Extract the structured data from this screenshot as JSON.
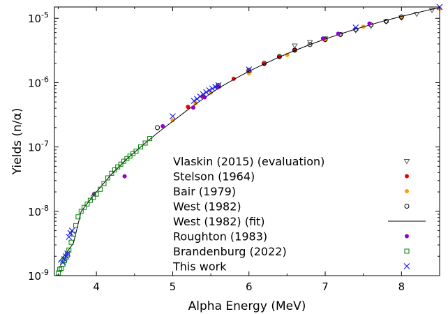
{
  "chart_data": {
    "type": "scatter",
    "xlabel": "Alpha Energy (MeV)",
    "ylabel": "Yields (n/α)",
    "xlim": [
      3.45,
      8.5
    ],
    "ylim": [
      1e-09,
      1.5e-05
    ],
    "yscale": "log",
    "x_ticks": [
      4,
      5,
      6,
      7,
      8
    ],
    "y_ticks": [
      {
        "value": 1e-09,
        "mantissa": "10",
        "exp": "-9"
      },
      {
        "value": 1e-08,
        "mantissa": "10",
        "exp": "-8"
      },
      {
        "value": 1e-07,
        "mantissa": "10",
        "exp": "-7"
      },
      {
        "value": 1e-06,
        "mantissa": "10",
        "exp": "-6"
      },
      {
        "value": 1e-05,
        "mantissa": "10",
        "exp": "-5"
      }
    ],
    "grid": false,
    "legend_position": "lower-right",
    "series": [
      {
        "name": "Vlaskin (2015) (evaluation)",
        "marker": "triangle-down-open",
        "color": "#555555",
        "points": [
          [
            6.6,
            3.75e-06
          ],
          [
            6.8,
            4.25e-06
          ],
          [
            7.0,
            4.85e-06
          ],
          [
            7.2,
            5.6e-06
          ],
          [
            7.4,
            6.5e-06
          ],
          [
            7.6,
            7.6e-06
          ],
          [
            7.8,
            8.9e-06
          ],
          [
            8.0,
            1.02e-05
          ],
          [
            8.2,
            1.17e-05
          ],
          [
            8.4,
            1.34e-05
          ]
        ]
      },
      {
        "name": "Stelson (1964)",
        "marker": "circle-filled",
        "color": "#ee0000",
        "points": [
          [
            5.2,
            4.2e-07
          ],
          [
            5.4,
            6.2e-07
          ],
          [
            5.6,
            8.6e-07
          ],
          [
            5.8,
            1.15e-06
          ],
          [
            6.0,
            1.5e-06
          ],
          [
            6.2,
            1.95e-06
          ],
          [
            6.4,
            2.5e-06
          ],
          [
            6.6,
            3.2e-06
          ],
          [
            7.0,
            4.7e-06
          ],
          [
            8.0,
            1.02e-05
          ]
        ]
      },
      {
        "name": "Bair (1979)",
        "marker": "circle-filled",
        "color": "#ffa000",
        "points": [
          [
            5.0,
            2.6e-07
          ],
          [
            5.3,
            4.8e-07
          ],
          [
            5.5,
            7e-07
          ],
          [
            6.0,
            1.4e-06
          ],
          [
            6.5,
            2.7e-06
          ],
          [
            7.0,
            4.6e-06
          ],
          [
            7.5,
            7.4e-06
          ],
          [
            8.0,
            1.06e-05
          ],
          [
            8.5,
            1.42e-05
          ]
        ]
      },
      {
        "name": "West (1982)",
        "marker": "circle-open",
        "color": "#000000",
        "points": [
          [
            4.8,
            2e-07
          ],
          [
            5.6,
            9e-07
          ],
          [
            6.0,
            1.55e-06
          ],
          [
            6.2,
            2e-06
          ],
          [
            6.4,
            2.55e-06
          ],
          [
            6.6,
            3.2e-06
          ],
          [
            6.8,
            3.9e-06
          ],
          [
            7.0,
            4.7e-06
          ],
          [
            7.2,
            5.6e-06
          ],
          [
            7.4,
            6.7e-06
          ],
          [
            7.6,
            7.9e-06
          ],
          [
            7.8,
            9e-06
          ],
          [
            8.0,
            1.05e-05
          ]
        ]
      },
      {
        "name": "West (1982) (fit)",
        "marker": "line",
        "color": "#000000",
        "points": [
          [
            3.5,
            1.6e-09
          ],
          [
            3.6,
            2.2e-09
          ],
          [
            3.7,
            3.2e-09
          ],
          [
            3.8,
            1e-08
          ],
          [
            4.0,
            2e-08
          ],
          [
            4.2,
            3.8e-08
          ],
          [
            4.4,
            6.5e-08
          ],
          [
            4.6,
            1.05e-07
          ],
          [
            4.8,
            1.65e-07
          ],
          [
            5.0,
            2.5e-07
          ],
          [
            5.2,
            3.8e-07
          ],
          [
            5.4,
            5.6e-07
          ],
          [
            5.6,
            8.2e-07
          ],
          [
            5.8,
            1.12e-06
          ],
          [
            6.0,
            1.5e-06
          ],
          [
            6.2,
            1.95e-06
          ],
          [
            6.4,
            2.5e-06
          ],
          [
            6.6,
            3.15e-06
          ],
          [
            6.8,
            3.9e-06
          ],
          [
            7.0,
            4.75e-06
          ],
          [
            7.2,
            5.7e-06
          ],
          [
            7.4,
            6.8e-06
          ],
          [
            7.6,
            8e-06
          ],
          [
            7.8,
            9.3e-06
          ],
          [
            8.0,
            1.07e-05
          ],
          [
            8.2,
            1.22e-05
          ],
          [
            8.4,
            1.38e-05
          ],
          [
            8.5,
            1.46e-05
          ]
        ]
      },
      {
        "name": "Roughton (1983)",
        "marker": "circle-filled",
        "color": "#9400d3",
        "points": [
          [
            3.97,
            1.85e-08
          ],
          [
            4.37,
            3.5e-08
          ],
          [
            4.87,
            2.1e-07
          ],
          [
            5.27,
            4.1e-07
          ],
          [
            5.42,
            5.9e-07
          ],
          [
            5.58,
            8.6e-07
          ],
          [
            6.97,
            4.85e-06
          ],
          [
            7.17,
            5.75e-06
          ],
          [
            7.58,
            8.3e-06
          ]
        ]
      },
      {
        "name": "Brandenburg (2022)",
        "marker": "square-open",
        "color": "#008000",
        "points": [
          [
            3.5,
            1.1e-09
          ],
          [
            3.52,
            1.25e-09
          ],
          [
            3.54,
            1.3e-09
          ],
          [
            3.56,
            1.5e-09
          ],
          [
            3.58,
            1.7e-09
          ],
          [
            3.6,
            1.9e-09
          ],
          [
            3.62,
            2.1e-09
          ],
          [
            3.64,
            2.5e-09
          ],
          [
            3.67,
            3.3e-09
          ],
          [
            3.7,
            4.4e-09
          ],
          [
            3.73,
            6e-09
          ],
          [
            3.76,
            8.2e-09
          ],
          [
            3.8,
            1e-08
          ],
          [
            3.84,
            1.15e-08
          ],
          [
            3.88,
            1.3e-08
          ],
          [
            3.92,
            1.48e-08
          ],
          [
            3.96,
            1.65e-08
          ],
          [
            4.0,
            1.85e-08
          ],
          [
            4.05,
            2.2e-08
          ],
          [
            4.1,
            2.7e-08
          ],
          [
            4.15,
            3.3e-08
          ],
          [
            4.2,
            3.9e-08
          ],
          [
            4.24,
            4.4e-08
          ],
          [
            4.28,
            4.9e-08
          ],
          [
            4.32,
            5.4e-08
          ],
          [
            4.36,
            6e-08
          ],
          [
            4.4,
            6.6e-08
          ],
          [
            4.44,
            7.2e-08
          ],
          [
            4.48,
            7.9e-08
          ],
          [
            4.52,
            8.6e-08
          ],
          [
            4.58,
            1e-07
          ],
          [
            4.64,
            1.15e-07
          ],
          [
            4.7,
            1.35e-07
          ]
        ]
      },
      {
        "name": "This work",
        "marker": "x",
        "color": "#1f1fee",
        "points": [
          [
            3.56,
            1.6e-09
          ],
          [
            3.58,
            1.8e-09
          ],
          [
            3.6,
            2e-09
          ],
          [
            3.62,
            2.2e-09
          ],
          [
            3.64,
            4e-09
          ],
          [
            3.66,
            4.6e-09
          ],
          [
            3.68,
            5e-09
          ],
          [
            5.0,
            3e-07
          ],
          [
            5.28,
            5.2e-07
          ],
          [
            5.32,
            5.6e-07
          ],
          [
            5.36,
            6.1e-07
          ],
          [
            5.4,
            6.6e-07
          ],
          [
            5.44,
            7.1e-07
          ],
          [
            5.48,
            7.6e-07
          ],
          [
            5.52,
            8.1e-07
          ],
          [
            5.56,
            8.6e-07
          ],
          [
            5.6,
            9.1e-07
          ],
          [
            6.0,
            1.6e-06
          ],
          [
            7.4,
            7.2e-06
          ],
          [
            8.5,
            1.5e-05
          ]
        ]
      }
    ]
  }
}
